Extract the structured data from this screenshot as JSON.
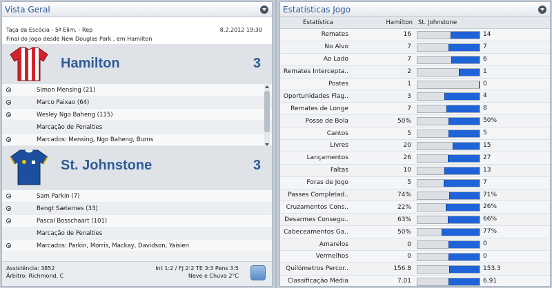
{
  "left": {
    "title": "Vista Geral",
    "competition": "Taça da Escócia - 5ª Elim. - Rep",
    "date": "8.2.2012 19:30",
    "venue_line": "Final do Jogo desde New Douglas Park , em Hamilton",
    "home": {
      "name": "Hamilton",
      "score": "3",
      "events": [
        "Simon Mensing (21)",
        "Marco Paixao (64)",
        "Wesley Ngo Baheng (115)",
        "Marcação de Penalties",
        "Marcados: Mensing, Ngo Baheng, Burns"
      ]
    },
    "away": {
      "name": "St. Johnstone",
      "score": "3",
      "events": [
        "Sam Parkin (7)",
        "Bengt Sæternes (33)",
        "Pascal Bosschaart (101)",
        "Marcação de Penalties",
        "Marcados: Parkin, Morris, Mackay, Davidson, Yaisien"
      ]
    },
    "footer": {
      "attendance": "Assistência: 3852",
      "referee": "Árbitro: Richmond, C",
      "stats_line": "Int 1:2 / FJ 2:2 TE 3:3 Pens 3:5",
      "weather": "Neve e Chuva 2°C"
    }
  },
  "right": {
    "title": "Estatísticas Jogo",
    "header": {
      "label": "Estatística",
      "home": "Hamilton",
      "away": "St. Johnstone"
    },
    "rows": [
      {
        "label": "Remates",
        "home": "16",
        "away": "14",
        "share": 0.47
      },
      {
        "label": "No Alvo",
        "home": "7",
        "away": "7",
        "share": 0.5
      },
      {
        "label": "Ao Lado",
        "home": "7",
        "away": "6",
        "share": 0.46
      },
      {
        "label": "Remates Intercepta..",
        "home": "2",
        "away": "1",
        "share": 0.33
      },
      {
        "label": "Postes",
        "home": "1",
        "away": "0",
        "share": 0
      },
      {
        "label": "Oportunidades Flag..",
        "home": "3",
        "away": "4",
        "share": 0.57
      },
      {
        "label": "Remates de Longe",
        "home": "7",
        "away": "8",
        "share": 0.53
      },
      {
        "label": "Posse de Bola",
        "home": "50%",
        "away": "50%",
        "share": 0.5
      },
      {
        "label": "Cantos",
        "home": "5",
        "away": "5",
        "share": 0.5
      },
      {
        "label": "Livres",
        "home": "20",
        "away": "15",
        "share": 0.43
      },
      {
        "label": "Lançamentos",
        "home": "26",
        "away": "27",
        "share": 0.51
      },
      {
        "label": "Faltas",
        "home": "10",
        "away": "13",
        "share": 0.57
      },
      {
        "label": "Foras de Jogo",
        "home": "5",
        "away": "7",
        "share": 0.58
      },
      {
        "label": "Passes Completad..",
        "home": "74%",
        "away": "71%",
        "share": 0.49
      },
      {
        "label": "Cruzamentos Cons..",
        "home": "22%",
        "away": "26%",
        "share": 0.54
      },
      {
        "label": "Desarmes Consegu..",
        "home": "63%",
        "away": "66%",
        "share": 0.51
      },
      {
        "label": "Cabeceamentos Ga..",
        "home": "50%",
        "away": "77%",
        "share": 0.61
      },
      {
        "label": "Amarelos",
        "home": "0",
        "away": "0",
        "share": 0.5
      },
      {
        "label": "Vermelhos",
        "home": "0",
        "away": "0",
        "share": 0.5
      },
      {
        "label": "Quilómetros Percor..",
        "home": "156.8",
        "away": "153.3",
        "share": 0.49
      },
      {
        "label": "Classificação Média",
        "home": "7.01",
        "away": "6.91",
        "share": 0.5
      }
    ]
  },
  "colors": {
    "accent": "#2e5c95",
    "away_bar": "#1f63d8",
    "home_shirt": "#d3222b",
    "away_shirt": "#1d4f9e"
  }
}
